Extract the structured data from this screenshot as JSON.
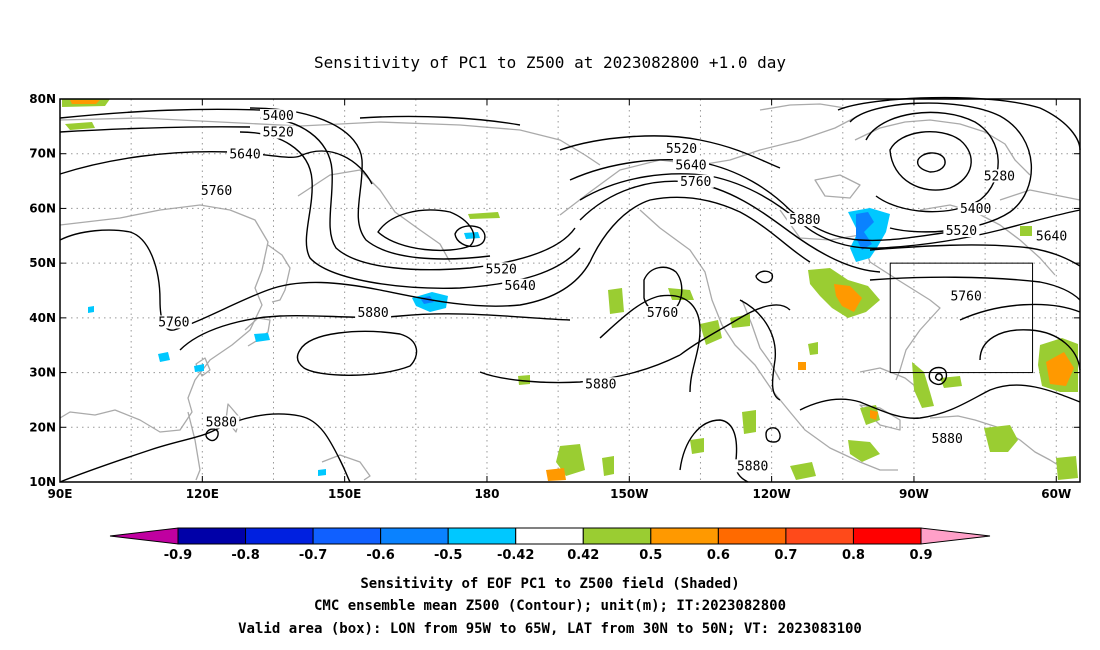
{
  "title": "Sensitivity of PC1 to Z500 at 2023082800 +1.0 day",
  "map": {
    "lon_range": [
      90,
      305
    ],
    "lat_range": [
      10,
      80
    ],
    "lon_ticks": [
      {
        "lon": 90,
        "label": "90E"
      },
      {
        "lon": 120,
        "label": "120E"
      },
      {
        "lon": 150,
        "label": "150E"
      },
      {
        "lon": 180,
        "label": "180"
      },
      {
        "lon": 210,
        "label": "150W"
      },
      {
        "lon": 240,
        "label": "120W"
      },
      {
        "lon": 270,
        "label": "90W"
      },
      {
        "lon": 300,
        "label": "60W"
      }
    ],
    "lat_ticks": [
      {
        "lat": 80,
        "label": "80N"
      },
      {
        "lat": 70,
        "label": "70N"
      },
      {
        "lat": 60,
        "label": "60N"
      },
      {
        "lat": 50,
        "label": "50N"
      },
      {
        "lat": 40,
        "label": "40N"
      },
      {
        "lat": 30,
        "label": "30N"
      },
      {
        "lat": 20,
        "label": "20N"
      },
      {
        "lat": 10,
        "label": "10N"
      }
    ],
    "grid_lon_step": 15,
    "grid_lat_step": 10,
    "valid_box": {
      "lon_min": 265,
      "lon_max": 295,
      "lat_min": 30,
      "lat_max": 50
    },
    "contour_labels": [
      {
        "text": "5400",
        "lon": 136,
        "lat": 76.5
      },
      {
        "text": "5520",
        "lon": 136,
        "lat": 73.5
      },
      {
        "text": "5640",
        "lon": 129,
        "lat": 69.5
      },
      {
        "text": "5760",
        "lon": 123,
        "lat": 62.8
      },
      {
        "text": "5760",
        "lon": 114,
        "lat": 38.8
      },
      {
        "text": "5880",
        "lon": 156,
        "lat": 40.5
      },
      {
        "text": "5880",
        "lon": 124,
        "lat": 20.5
      },
      {
        "text": "5520",
        "lon": 183,
        "lat": 48.5
      },
      {
        "text": "5640",
        "lon": 187,
        "lat": 45.5
      },
      {
        "text": "5520",
        "lon": 221,
        "lat": 70.5
      },
      {
        "text": "5640",
        "lon": 223,
        "lat": 67.5
      },
      {
        "text": "5760",
        "lon": 224,
        "lat": 64.5
      },
      {
        "text": "5880",
        "lon": 247,
        "lat": 57.5
      },
      {
        "text": "5760",
        "lon": 217,
        "lat": 40.5
      },
      {
        "text": "5880",
        "lon": 204,
        "lat": 27.5
      },
      {
        "text": "5880",
        "lon": 236,
        "lat": 12.5
      },
      {
        "text": "5880",
        "lon": 277,
        "lat": 17.5
      },
      {
        "text": "5280",
        "lon": 288,
        "lat": 65.5
      },
      {
        "text": "5400",
        "lon": 283,
        "lat": 59.5
      },
      {
        "text": "5520",
        "lon": 280,
        "lat": 55.5
      },
      {
        "text": "5640",
        "lon": 299,
        "lat": 54.5
      },
      {
        "text": "5760",
        "lon": 281,
        "lat": 43.5
      }
    ]
  },
  "shading": {
    "positive_green": "#9ACD32",
    "positive_orange": "#FF9900",
    "negative_cyan": "#00C8FF",
    "negative_blue": "#0A82FF"
  },
  "colorbar": {
    "labels": [
      "-0.9",
      "-0.8",
      "-0.7",
      "-0.6",
      "-0.5",
      "-0.42",
      "0.42",
      "0.5",
      "0.6",
      "0.7",
      "0.8",
      "0.9"
    ],
    "colors": [
      "#0000A8",
      "#0020E0",
      "#1060FF",
      "#0A82FF",
      "#00C8FF",
      "#FFFFFF",
      "#9ACD32",
      "#FF9900",
      "#FF6A00",
      "#FF4A1A",
      "#FF0000"
    ],
    "low_triangle_color": "#C000A0",
    "high_triangle_color": "#FFA0C8"
  },
  "footer": {
    "line1": "Sensitivity of EOF PC1 to Z500 field (Shaded)",
    "line2": "CMC ensemble mean Z500 (Contour); unit(m); IT:2023082800",
    "line3": "Valid area (box): LON from 95W to 65W, LAT from 30N to 50N; VT: 2023083100"
  }
}
